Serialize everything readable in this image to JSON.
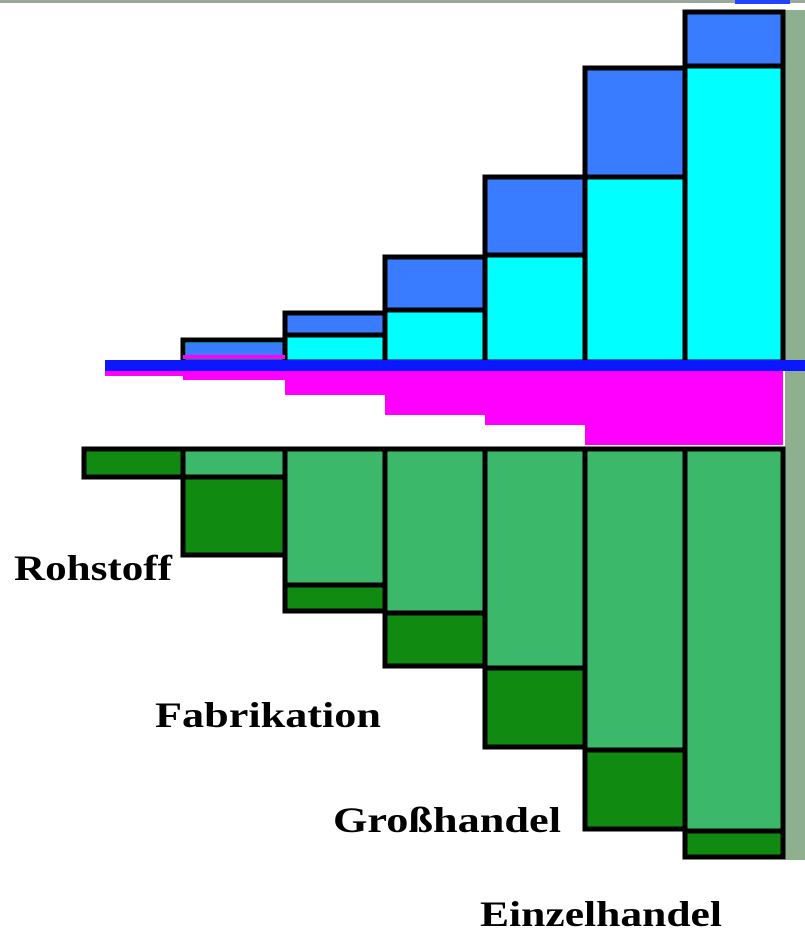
{
  "labels": [
    "Rohstoff",
    "Fabrikation",
    "Großhandel",
    "Einzelhandel"
  ]
}
